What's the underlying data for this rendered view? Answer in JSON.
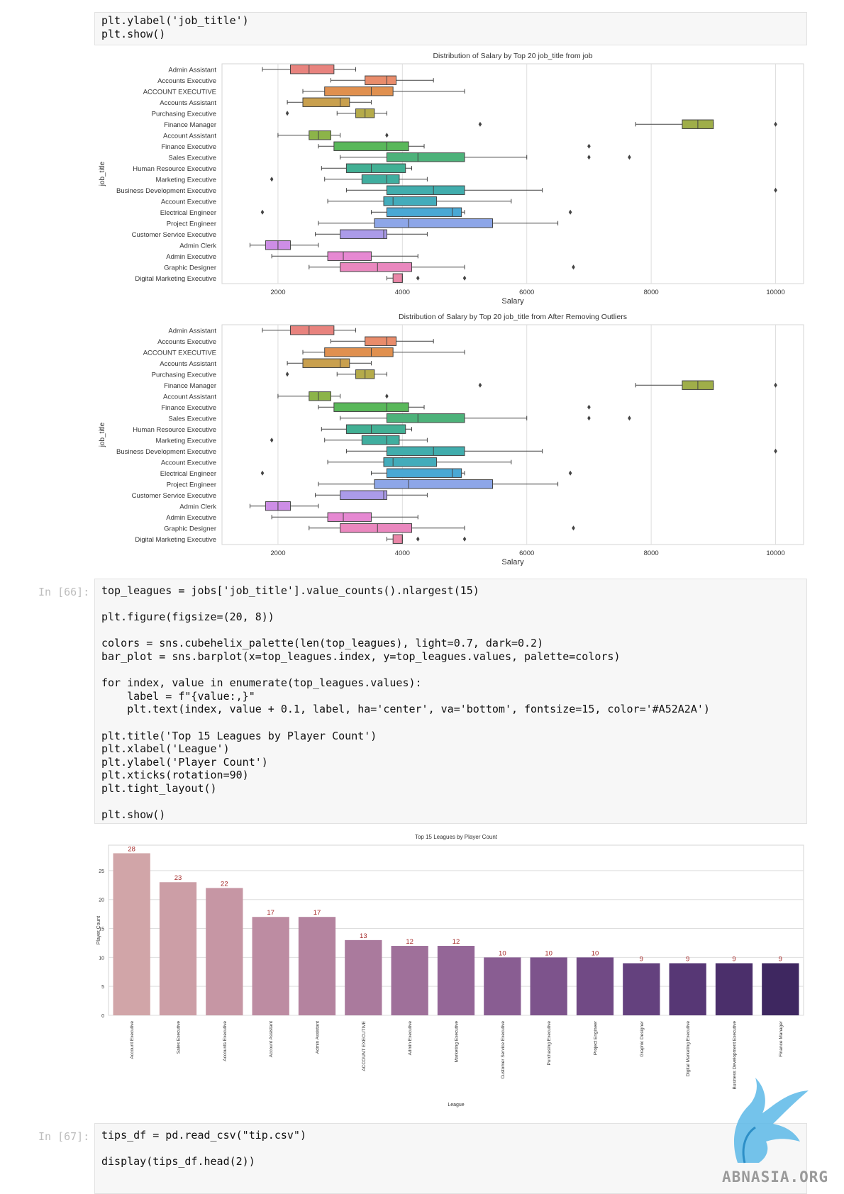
{
  "cells": {
    "top_code": [
      "plt.ylabel('job_title')",
      "plt.show()"
    ],
    "cell66": {
      "prompt": "In [66]:",
      "lines": [
        "top_leagues = jobs['job_title'].value_counts().nlargest(15)",
        "",
        "plt.figure(figsize=(20, 8))",
        "",
        "colors = sns.cubehelix_palette(len(top_leagues), light=0.7, dark=0.2)",
        "bar_plot = sns.barplot(x=top_leagues.index, y=top_leagues.values, palette=colors)",
        "",
        "for index, value in enumerate(top_leagues.values):",
        "    label = f\"{value:,}\"",
        "    plt.text(index, value + 0.1, label, ha='center', va='bottom', fontsize=15, color='#A52A2A')",
        "",
        "plt.title('Top 15 Leagues by Player Count')",
        "plt.xlabel('League')",
        "plt.ylabel('Player Count')",
        "plt.xticks(rotation=90)",
        "plt.tight_layout()",
        "",
        "plt.show()"
      ]
    },
    "cell67": {
      "prompt": "In [67]:",
      "lines": [
        "tips_df = pd.read_csv(\"tip.csv\")",
        "",
        "display(tips_df.head(2))"
      ]
    }
  },
  "chart_data": [
    {
      "type": "box",
      "title": "Distribution of Salary by Top 20 job_title from job",
      "xlabel": "Salary",
      "ylabel": "job_title",
      "xlim": [
        1100,
        10450
      ],
      "xticks": [
        2000,
        4000,
        6000,
        8000,
        10000
      ],
      "grid": true,
      "categories": [
        "Admin Assistant",
        "Accounts Executive",
        "ACCOUNT EXECUTIVE",
        "Accounts Assistant",
        "Purchasing Executive",
        "Finance Manager",
        "Account Assistant",
        "Finance Executive",
        "Sales Executive",
        "Human Resource Executive",
        "Marketing Executive",
        "Business Development Executive",
        "Account Executive",
        "Electrical Engineer",
        "Project Engineer",
        "Customer Service Executive",
        "Admin Clerk",
        "Admin Executive",
        "Graphic Designer",
        "Digital Marketing Executive"
      ],
      "colors": [
        "#e8837e",
        "#e98c6b",
        "#e0904f",
        "#c9a04e",
        "#b5ab4a",
        "#9fae49",
        "#8cb449",
        "#59b85a",
        "#4db27a",
        "#42b094",
        "#40ae9f",
        "#41adad",
        "#43acbb",
        "#4aa8d4",
        "#8da6e8",
        "#ab9be9",
        "#cd8de6",
        "#e688d2",
        "#ea88bf",
        "#ea87a8"
      ],
      "boxes": [
        {
          "whislo": 1750,
          "q1": 2200,
          "med": 2500,
          "q3": 2900,
          "whishi": 3250,
          "fliers": []
        },
        {
          "whislo": 2850,
          "q1": 3400,
          "med": 3750,
          "q3": 3900,
          "whishi": 4500,
          "fliers": []
        },
        {
          "whislo": 2400,
          "q1": 2750,
          "med": 3500,
          "q3": 3850,
          "whishi": 5000,
          "fliers": []
        },
        {
          "whislo": 2150,
          "q1": 2400,
          "med": 3000,
          "q3": 3150,
          "whishi": 3500,
          "fliers": []
        },
        {
          "whislo": 2950,
          "q1": 3250,
          "med": 3400,
          "q3": 3550,
          "whishi": 3750,
          "fliers": [
            2150
          ]
        },
        {
          "whislo": 7750,
          "q1": 8500,
          "med": 8750,
          "q3": 9000,
          "whishi": 9000,
          "fliers": [
            5250,
            10000
          ]
        },
        {
          "whislo": 2000,
          "q1": 2500,
          "med": 2650,
          "q3": 2850,
          "whishi": 3000,
          "fliers": [
            3750
          ]
        },
        {
          "whislo": 2650,
          "q1": 2900,
          "med": 3750,
          "q3": 4100,
          "whishi": 4350,
          "fliers": [
            7000
          ]
        },
        {
          "whislo": 3000,
          "q1": 3750,
          "med": 4250,
          "q3": 5000,
          "whishi": 6000,
          "fliers": [
            7000,
            7650
          ]
        },
        {
          "whislo": 2700,
          "q1": 3100,
          "med": 3500,
          "q3": 4050,
          "whishi": 4150,
          "fliers": []
        },
        {
          "whislo": 2750,
          "q1": 3350,
          "med": 3750,
          "q3": 3950,
          "whishi": 4400,
          "fliers": [
            1900
          ]
        },
        {
          "whislo": 3100,
          "q1": 3750,
          "med": 4500,
          "q3": 5000,
          "whishi": 6250,
          "fliers": [
            10000
          ]
        },
        {
          "whislo": 2800,
          "q1": 3700,
          "med": 3850,
          "q3": 4550,
          "whishi": 5750,
          "fliers": []
        },
        {
          "whislo": 3500,
          "q1": 3750,
          "med": 4800,
          "q3": 4950,
          "whishi": 5000,
          "fliers": [
            1750,
            6700
          ]
        },
        {
          "whislo": 2650,
          "q1": 3550,
          "med": 4100,
          "q3": 5450,
          "whishi": 6500,
          "fliers": []
        },
        {
          "whislo": 2600,
          "q1": 3000,
          "med": 3700,
          "q3": 3750,
          "whishi": 4400,
          "fliers": []
        },
        {
          "whislo": 1550,
          "q1": 1800,
          "med": 2000,
          "q3": 2200,
          "whishi": 2650,
          "fliers": []
        },
        {
          "whislo": 1900,
          "q1": 2800,
          "med": 3050,
          "q3": 3500,
          "whishi": 4250,
          "fliers": []
        },
        {
          "whislo": 2500,
          "q1": 3000,
          "med": 3600,
          "q3": 4150,
          "whishi": 5000,
          "fliers": [
            6750
          ]
        },
        {
          "whislo": 3750,
          "q1": 3850,
          "med": 4000,
          "q3": 4000,
          "whishi": 4000,
          "fliers": [
            4250,
            5000
          ]
        }
      ]
    },
    {
      "type": "box",
      "title": "Distribution of Salary by Top 20 job_title from After Removing Outliers",
      "xlabel": "Salary",
      "ylabel": "job_title",
      "xlim": [
        1100,
        10450
      ],
      "xticks": [
        2000,
        4000,
        6000,
        8000,
        10000
      ],
      "grid": true,
      "same_as_first": true
    },
    {
      "type": "bar",
      "title": "Top 15 Leagues by Player Count",
      "xlabel": "League",
      "ylabel": "Player Count",
      "ylim": [
        0,
        29.4
      ],
      "yticks": [
        0,
        5,
        10,
        15,
        20,
        25
      ],
      "grid": true,
      "label_color": "#A52A2A",
      "categories": [
        "Account Executive",
        "Sales Executive",
        "Accounts Executive",
        "Account Assistant",
        "Admin Assistant",
        "ACCOUNT EXECUTIVE",
        "Admin Executive",
        "Marketing Executive",
        "Customer Service Executive",
        "Purchasing Executive",
        "Project Engineer",
        "Graphic Designer",
        "Digital Marketing Executive",
        "Business Development Executive",
        "Finance Manager"
      ],
      "values": [
        28,
        23,
        22,
        17,
        17,
        13,
        12,
        12,
        10,
        10,
        10,
        9,
        9,
        9,
        9
      ],
      "colors": [
        "#d1a5a8",
        "#cc9ea6",
        "#c696a4",
        "#bd8ca2",
        "#b4839f",
        "#aa7a9d",
        "#9f709a",
        "#946697",
        "#895d92",
        "#7d538c",
        "#714a85",
        "#64417e",
        "#573775",
        "#4b2f6b",
        "#3e2760"
      ]
    }
  ],
  "watermark": {
    "text": "ABNASIA.ORG",
    "logo": "dragon-logo-icon"
  }
}
